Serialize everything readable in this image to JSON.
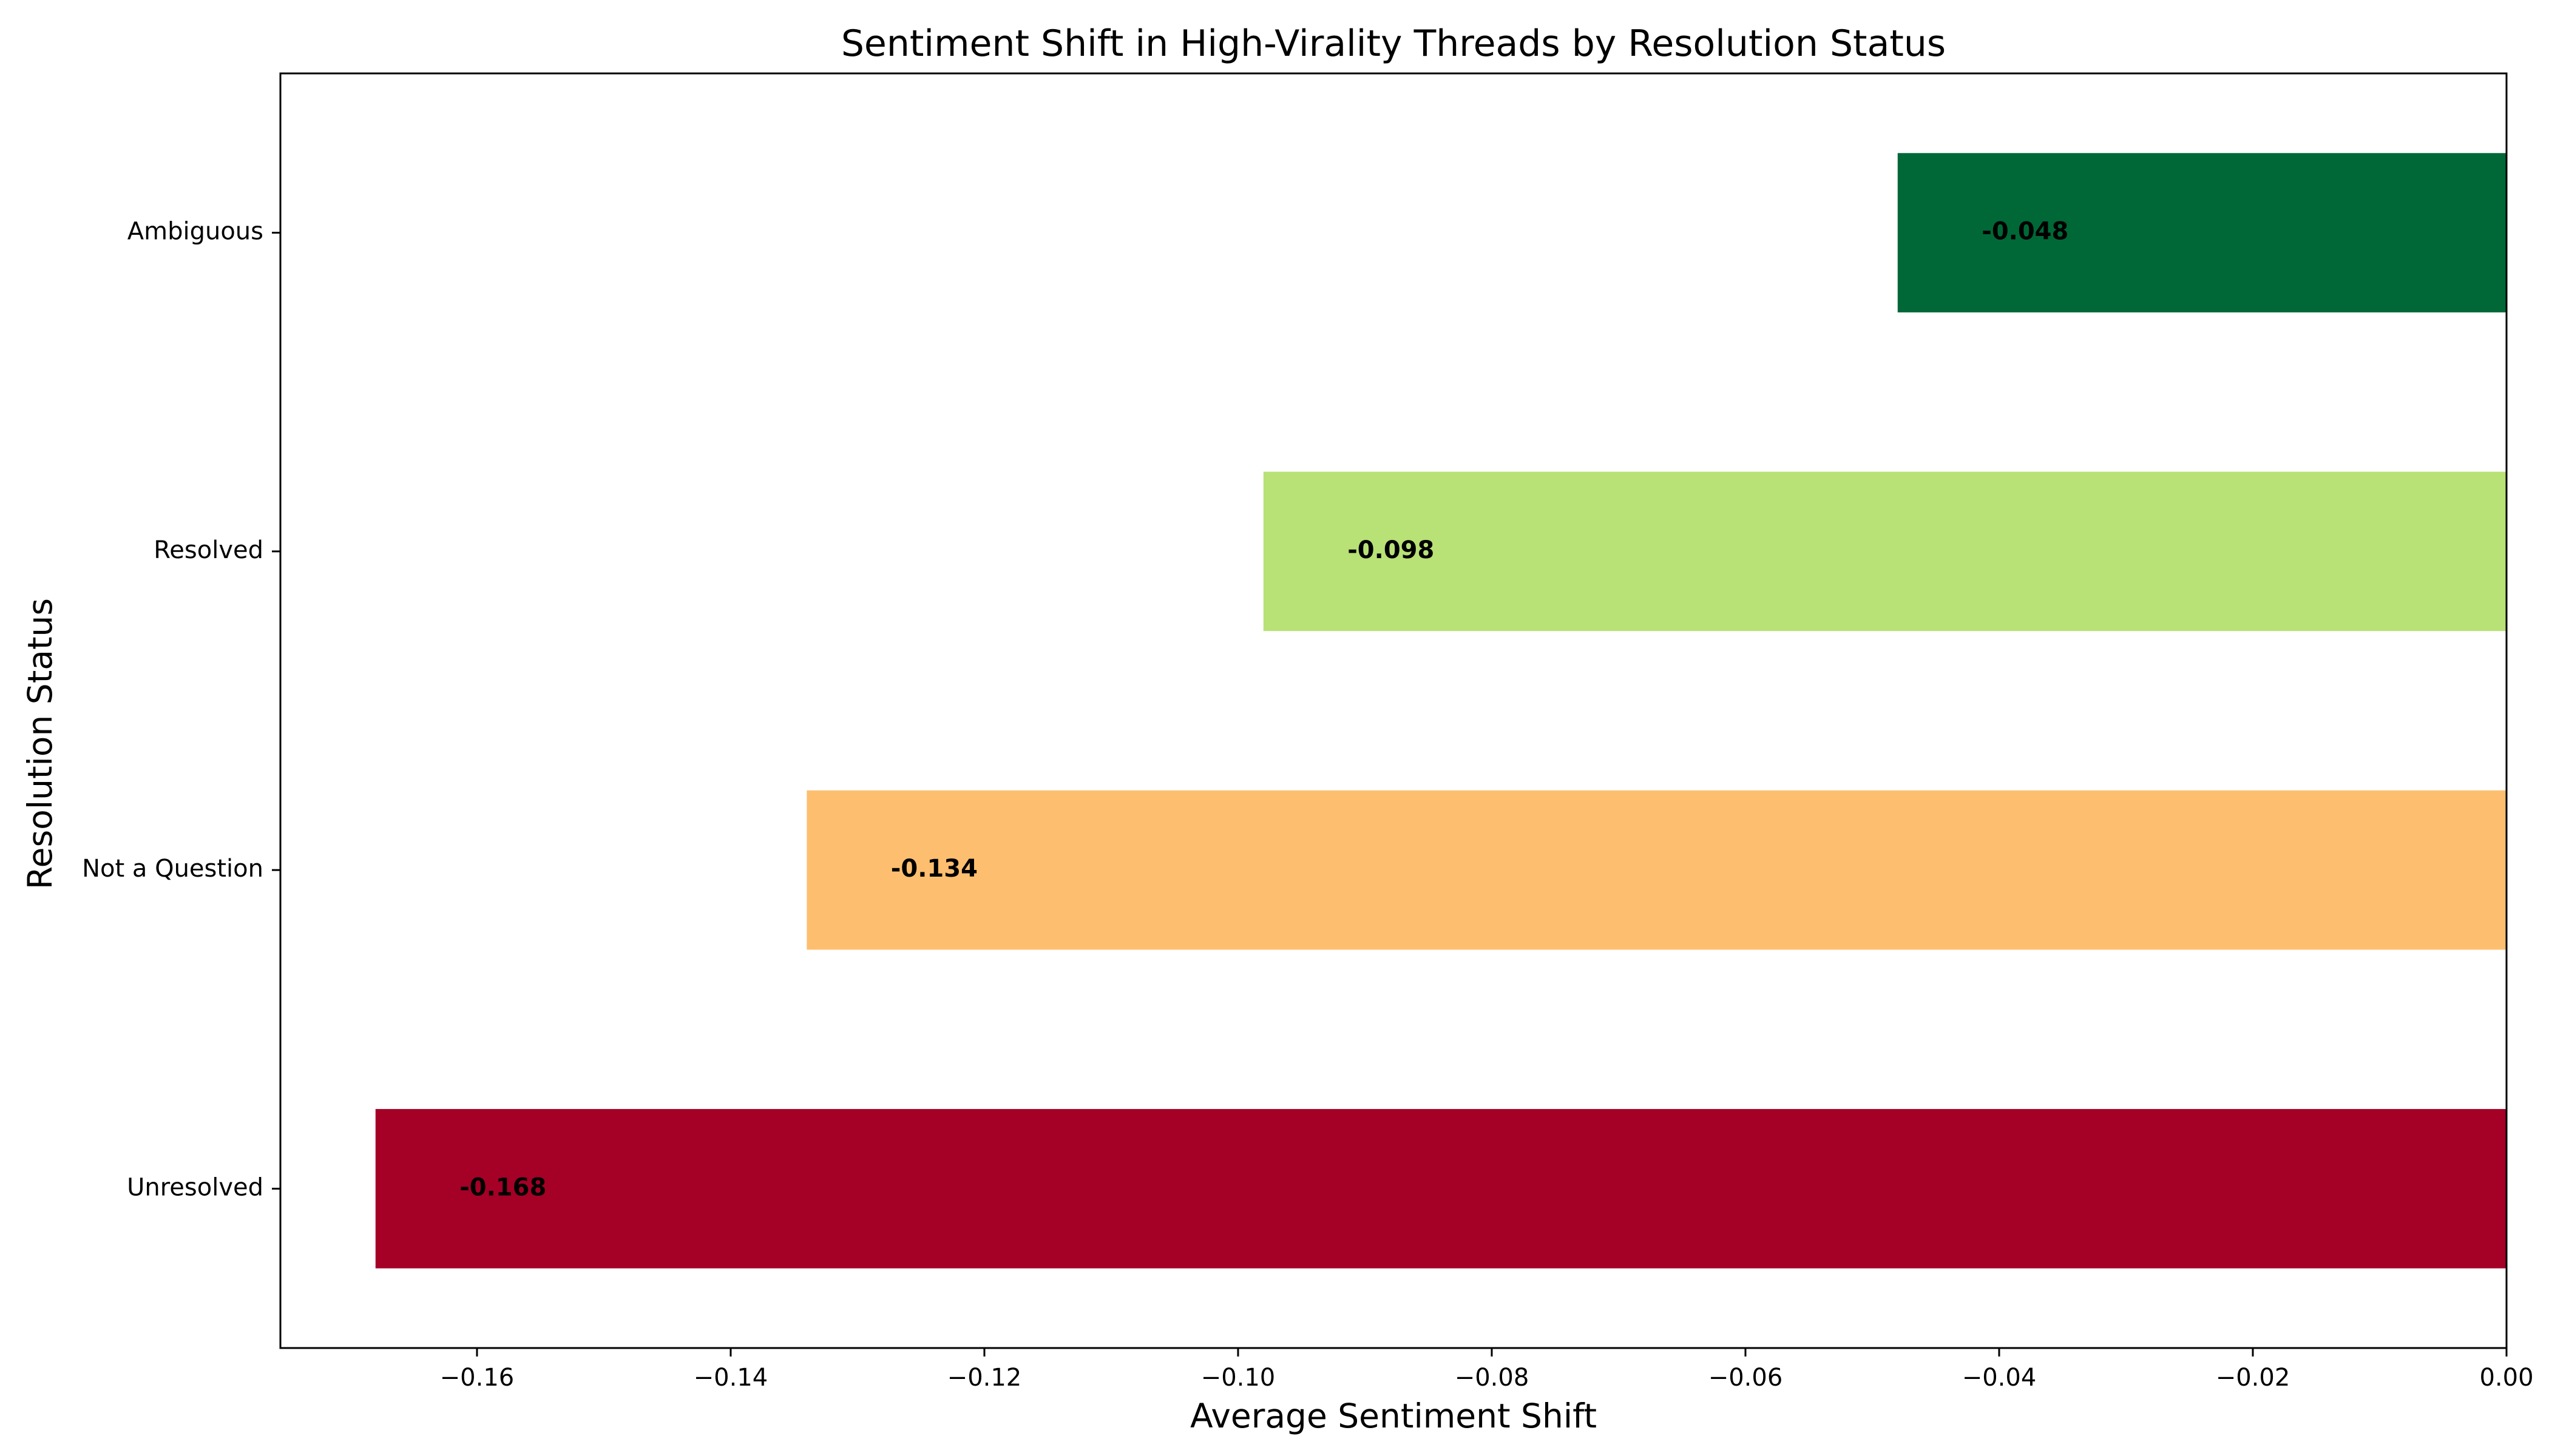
{
  "chart_data": {
    "type": "bar",
    "orientation": "horizontal",
    "title": "Sentiment Shift in High-Virality Threads by Resolution Status",
    "xlabel": "Average Sentiment Shift",
    "ylabel": "Resolution Status",
    "categories": [
      "Unresolved",
      "Not a Question",
      "Resolved",
      "Ambiguous"
    ],
    "values": [
      -0.168,
      -0.134,
      -0.098,
      -0.048
    ],
    "value_labels": [
      "-0.168",
      "-0.134",
      "-0.098",
      "-0.048"
    ],
    "colors": [
      "#a50026",
      "#fdbf6f",
      "#b8e176",
      "#006837"
    ],
    "xlim": [
      -0.1755,
      0.0
    ],
    "xticks": [
      -0.16,
      -0.14,
      -0.12,
      -0.1,
      -0.08,
      -0.06,
      -0.04,
      -0.02,
      0.0
    ],
    "xtick_labels": [
      "−0.16",
      "−0.14",
      "−0.12",
      "−0.10",
      "−0.08",
      "−0.06",
      "−0.04",
      "−0.02",
      "0.00"
    ],
    "reference_line": 0.0,
    "grid": false,
    "legend": "none"
  }
}
